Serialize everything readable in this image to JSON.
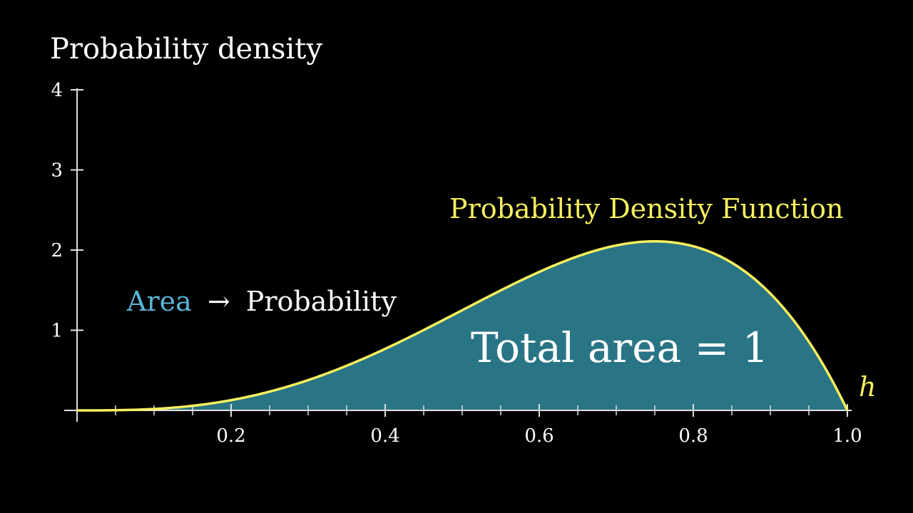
{
  "chart_data": {
    "type": "area",
    "title": "",
    "xlabel": "h",
    "ylabel": "Probability density",
    "xlim": [
      0,
      1
    ],
    "ylim": [
      0,
      4
    ],
    "x_ticks": [
      0.2,
      0.4,
      0.6,
      0.8,
      1.0
    ],
    "x_tick_labels": [
      "0.2",
      "0.4",
      "0.6",
      "0.8",
      "1.0"
    ],
    "y_ticks": [
      1,
      2,
      3,
      4
    ],
    "y_tick_labels": [
      "1",
      "2",
      "3",
      "4"
    ],
    "x_minor_step": 0.05,
    "grid": false,
    "series": [
      {
        "name": "Probability Density Function",
        "function": "20*h^3*(1-h)",
        "x": [
          0,
          0.05,
          0.1,
          0.15,
          0.2,
          0.25,
          0.3,
          0.35,
          0.4,
          0.45,
          0.5,
          0.55,
          0.6,
          0.65,
          0.7,
          0.75,
          0.8,
          0.85,
          0.9,
          0.95,
          1.0
        ],
        "y": [
          0,
          0.002,
          0.018,
          0.057,
          0.128,
          0.234,
          0.378,
          0.557,
          0.768,
          1.002,
          1.25,
          1.497,
          1.728,
          1.923,
          2.058,
          2.109,
          2.048,
          1.842,
          1.458,
          0.857,
          0
        ],
        "line_color": "#f6f05e",
        "fill_color": "#2a7585"
      }
    ],
    "annotations": {
      "area_word": "Area",
      "arrow": "→",
      "probability_word": "Probability",
      "total_area": "Total area = 1"
    }
  },
  "colors": {
    "background": "#000000",
    "axis": "#e0e0e0",
    "curve": "#f6f05e",
    "fill": "#2a7585",
    "area_word": "#58b6d8"
  }
}
